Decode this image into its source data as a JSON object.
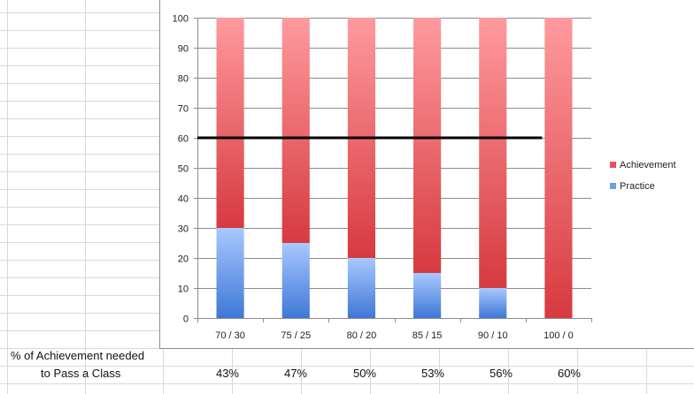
{
  "chart_data": {
    "type": "bar",
    "stacked": true,
    "categories": [
      "70 / 30",
      "75 / 25",
      "80 / 20",
      "85 / 15",
      "90 / 10",
      "100 / 0"
    ],
    "series": [
      {
        "name": "Practice",
        "values": [
          30,
          25,
          20,
          15,
          10,
          0
        ],
        "color": "#6f9ee8"
      },
      {
        "name": "Achievement",
        "values": [
          70,
          75,
          80,
          85,
          90,
          100
        ],
        "color": "#e8505a"
      }
    ],
    "ylim": [
      0,
      100
    ],
    "yticks": [
      "0",
      "10",
      "20",
      "30",
      "40",
      "50",
      "60",
      "70",
      "80",
      "90",
      "100"
    ],
    "reference_line": 60,
    "grid": true,
    "legend_position": "right"
  },
  "sheet": {
    "label_line1": "% of Achievement needed",
    "label_line2": "to Pass a Class",
    "values": [
      "43%",
      "47%",
      "50%",
      "53%",
      "56%",
      "60%"
    ]
  }
}
